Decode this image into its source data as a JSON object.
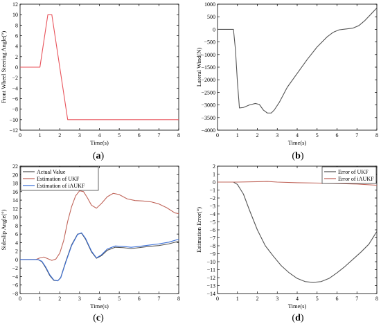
{
  "chart_data": [
    {
      "id": "a",
      "caption": "(a)",
      "type": "line",
      "xlabel": "Time(s)",
      "ylabel": "Front Wheel Steering Angle(°)",
      "xlim": [
        0,
        8
      ],
      "ylim": [
        -12,
        12
      ],
      "xticks": [
        0,
        1,
        2,
        3,
        4,
        5,
        6,
        7,
        8
      ],
      "yticks": [
        -12,
        -10,
        -8,
        -6,
        -4,
        -2,
        0,
        2,
        4,
        6,
        8,
        10,
        12
      ],
      "grid": false,
      "legend": null,
      "series": [
        {
          "color": "#e8525a",
          "x": [
            0,
            1.0,
            1.4,
            1.6,
            2.4,
            2.5,
            8
          ],
          "y": [
            0,
            0,
            10,
            10,
            -10,
            -10,
            -10
          ]
        }
      ]
    },
    {
      "id": "b",
      "caption": "(b)",
      "type": "line",
      "xlabel": "Time(s)",
      "ylabel": "Lateral Wind(N)",
      "xlim": [
        0,
        8
      ],
      "ylim": [
        -4000,
        1000
      ],
      "xticks": [
        0,
        1,
        2,
        3,
        4,
        5,
        6,
        7,
        8
      ],
      "yticks": [
        -4000,
        -3500,
        -3000,
        -2500,
        -2000,
        -1500,
        -1000,
        -500,
        0,
        500,
        1000
      ],
      "grid": false,
      "legend": null,
      "series": [
        {
          "color": "#555555",
          "x": [
            0,
            0.8,
            0.9,
            1.0,
            1.1,
            1.3,
            1.6,
            1.9,
            2.1,
            2.3,
            2.5,
            2.7,
            2.85,
            3.1,
            3.5,
            4.0,
            4.5,
            5.0,
            5.5,
            5.8,
            6.1,
            6.4,
            6.8,
            7.1,
            7.4,
            7.7,
            8.0
          ],
          "y": [
            0,
            0,
            -800,
            -2100,
            -3120,
            -3100,
            -3000,
            -2940,
            -2980,
            -3200,
            -3320,
            -3320,
            -3200,
            -2900,
            -2300,
            -1750,
            -1200,
            -700,
            -300,
            -120,
            -20,
            10,
            50,
            150,
            350,
            600,
            850
          ]
        }
      ]
    },
    {
      "id": "c",
      "caption": "(c)",
      "type": "line",
      "xlabel": "Time(s)",
      "ylabel": "Sideslip Angle(°)",
      "xlim": [
        0,
        8
      ],
      "ylim": [
        -8,
        22
      ],
      "xticks": [
        0,
        1,
        2,
        3,
        4,
        5,
        6,
        7,
        8
      ],
      "yticks": [
        -8,
        -6,
        -4,
        -2,
        0,
        2,
        4,
        6,
        8,
        10,
        12,
        14,
        16,
        18,
        20,
        22
      ],
      "grid": false,
      "legend": "top-left",
      "series": [
        {
          "name": "Actual Value",
          "color": "#555555",
          "x": [
            0,
            0.9,
            1.1,
            1.3,
            1.5,
            1.7,
            1.9,
            2.05,
            2.3,
            2.6,
            2.9,
            3.1,
            3.3,
            3.6,
            3.85,
            4.1,
            4.4,
            4.8,
            5.2,
            5.6,
            6.0,
            6.5,
            7.0,
            7.5,
            8.0
          ],
          "y": [
            0,
            0,
            -0.5,
            -2.0,
            -3.8,
            -4.9,
            -5.0,
            -4.2,
            -0.5,
            3.5,
            6.0,
            6.2,
            4.8,
            1.8,
            0.3,
            0.9,
            2.2,
            2.9,
            2.8,
            2.6,
            2.8,
            3.1,
            3.3,
            3.7,
            4.3
          ]
        },
        {
          "name": "Estimation of UKF",
          "color": "#c0655a",
          "x": [
            0,
            0.8,
            1.0,
            1.2,
            1.4,
            1.6,
            1.8,
            2.0,
            2.2,
            2.4,
            2.6,
            2.8,
            3.0,
            3.2,
            3.4,
            3.6,
            3.85,
            4.1,
            4.4,
            4.7,
            5.0,
            5.4,
            5.8,
            6.2,
            6.6,
            7.0,
            7.4,
            7.8,
            8.0
          ],
          "y": [
            0,
            0,
            0.4,
            0.6,
            0.2,
            -0.2,
            0.1,
            1.5,
            4.5,
            9.0,
            12.5,
            15.0,
            16.2,
            16.0,
            14.5,
            12.8,
            12.1,
            13.2,
            14.8,
            15.6,
            15.3,
            14.3,
            13.9,
            13.8,
            13.6,
            13.1,
            12.2,
            11.0,
            10.8
          ]
        },
        {
          "name": "Estimation of iAUKF",
          "color": "#3a6fd8",
          "x": [
            0,
            0.9,
            1.1,
            1.3,
            1.5,
            1.7,
            1.9,
            2.05,
            2.3,
            2.6,
            2.9,
            3.1,
            3.3,
            3.6,
            3.85,
            4.1,
            4.4,
            4.8,
            5.2,
            5.6,
            6.0,
            6.5,
            7.0,
            7.5,
            8.0
          ],
          "y": [
            0,
            0,
            -0.4,
            -1.8,
            -3.6,
            -4.8,
            -5.0,
            -4.3,
            -0.7,
            3.3,
            5.9,
            6.3,
            5.0,
            2.0,
            0.4,
            1.1,
            2.5,
            3.2,
            3.1,
            2.9,
            3.1,
            3.4,
            3.7,
            4.1,
            4.8
          ]
        }
      ]
    },
    {
      "id": "d",
      "caption": "(d)",
      "type": "line",
      "xlabel": "Time(s)",
      "ylabel": "Estimation Error(°)",
      "xlim": [
        0,
        8
      ],
      "ylim": [
        -14,
        2
      ],
      "xticks": [
        0,
        1,
        2,
        3,
        4,
        5,
        6,
        7,
        8
      ],
      "yticks": [
        -14,
        -13,
        -12,
        -11,
        -10,
        -9,
        -8,
        -7,
        -6,
        -5,
        -4,
        -3,
        -2,
        -1,
        0,
        1,
        2
      ],
      "grid": false,
      "legend": "top-right",
      "series": [
        {
          "name": "Error of UKF",
          "color": "#555555",
          "x": [
            0,
            0.8,
            1.0,
            1.3,
            1.6,
            2.0,
            2.4,
            2.8,
            3.2,
            3.6,
            4.0,
            4.4,
            4.8,
            5.2,
            5.6,
            6.0,
            6.4,
            6.8,
            7.2,
            7.6,
            8.0
          ],
          "y": [
            0,
            0,
            -0.3,
            -1.5,
            -3.5,
            -6.0,
            -8.0,
            -9.3,
            -10.5,
            -11.4,
            -12.1,
            -12.5,
            -12.6,
            -12.5,
            -12.1,
            -11.4,
            -10.6,
            -9.7,
            -8.8,
            -7.8,
            -6.2
          ]
        },
        {
          "name": "Error of iAUKF",
          "color": "#c0655a",
          "x": [
            0,
            1.0,
            2.0,
            2.5,
            3.0,
            4.0,
            5.0,
            6.0,
            7.0,
            8.0
          ],
          "y": [
            0,
            0,
            0.05,
            0.08,
            0.0,
            -0.08,
            -0.12,
            -0.18,
            -0.25,
            -0.4
          ]
        }
      ]
    }
  ]
}
